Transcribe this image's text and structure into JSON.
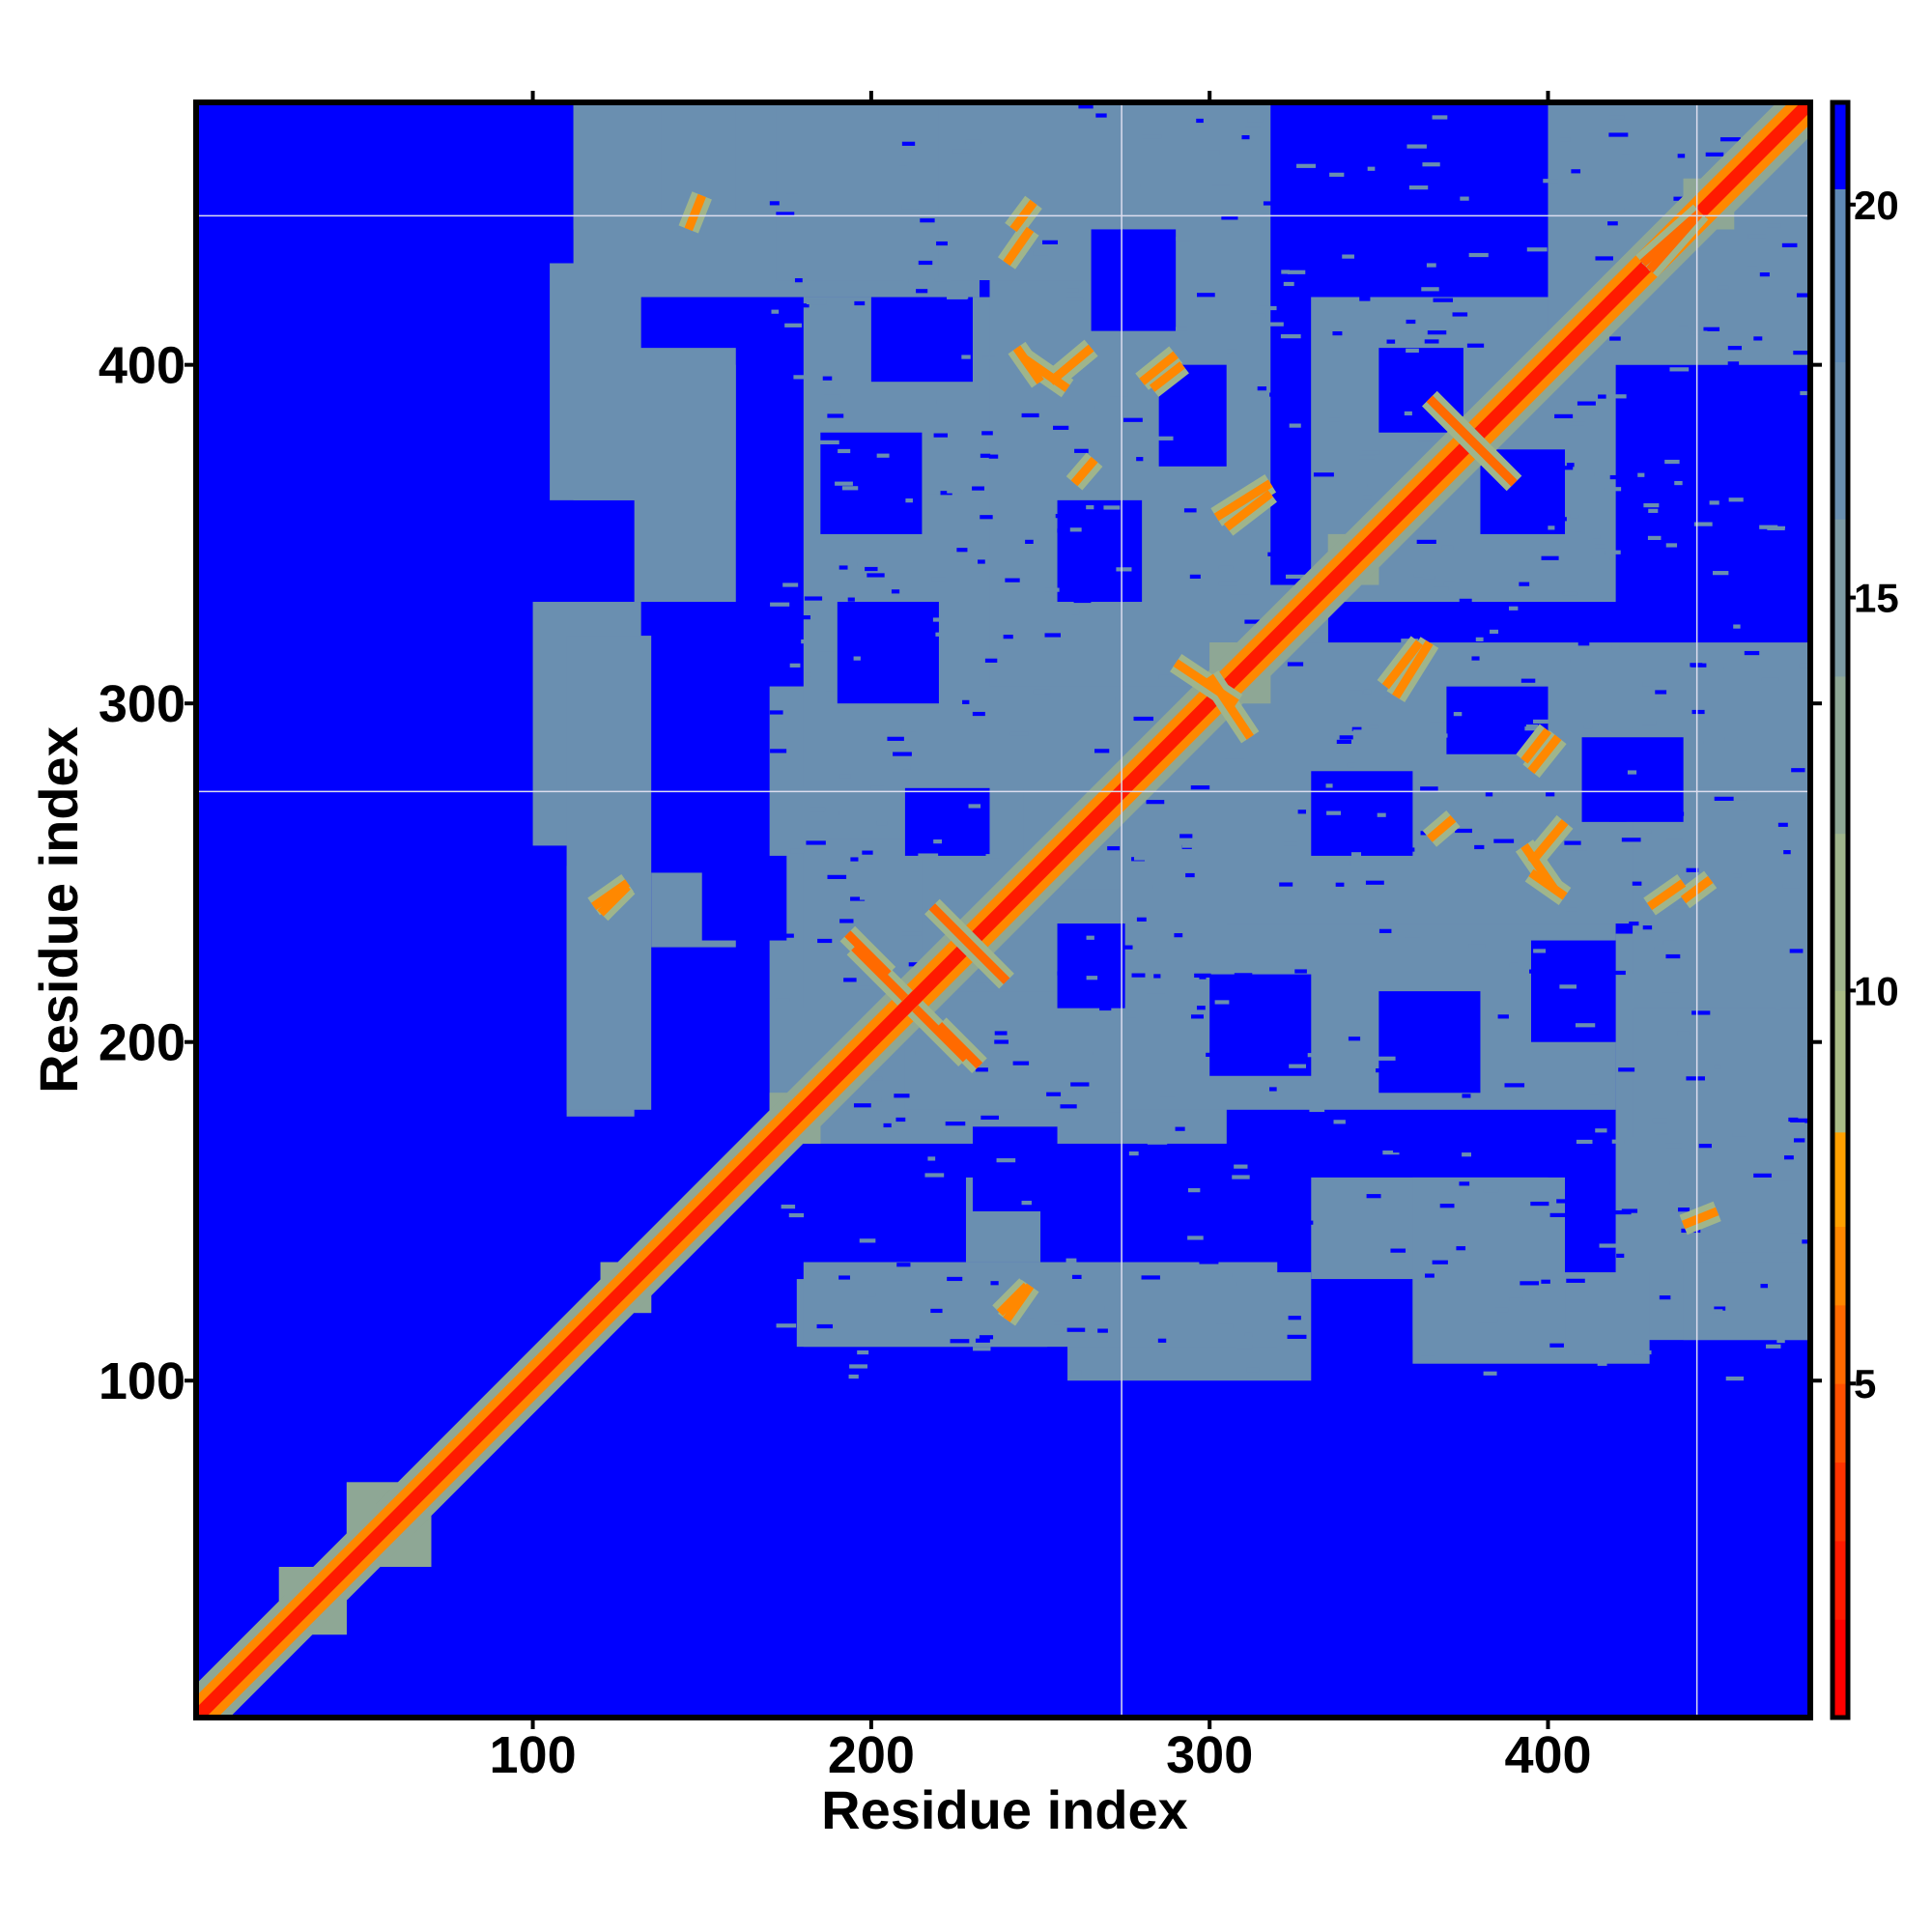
{
  "chart_data": {
    "type": "heatmap",
    "title": "",
    "xlabel": "Residue index",
    "ylabel": "Residue index",
    "xlim": [
      0.5,
      477.5
    ],
    "ylim": [
      0.5,
      477.5
    ],
    "xticks": [
      "100",
      "200",
      "300",
      "400"
    ],
    "yticks": [
      "100",
      "200",
      "300",
      "400"
    ],
    "tick_values": [
      100,
      200,
      300,
      400
    ],
    "colorbar": {
      "range": [
        0.75,
        21.3
      ],
      "ticks": [
        "5",
        "10",
        "15",
        "20"
      ],
      "tick_values": [
        5,
        10,
        15,
        20
      ],
      "stops": [
        {
          "v": 0.75,
          "color": "#ff0000"
        },
        {
          "v": 2,
          "color": "#ff1a00"
        },
        {
          "v": 3,
          "color": "#ff3300"
        },
        {
          "v": 4,
          "color": "#ff5000"
        },
        {
          "v": 5,
          "color": "#ff6a00"
        },
        {
          "v": 6,
          "color": "#ff8800"
        },
        {
          "v": 7,
          "color": "#ffa000"
        },
        {
          "v": 8.2,
          "color": "#a9bc86"
        },
        {
          "v": 10,
          "color": "#9fb58c"
        },
        {
          "v": 12,
          "color": "#8ea795"
        },
        {
          "v": 14,
          "color": "#7c9aa3"
        },
        {
          "v": 16,
          "color": "#6a8fb0"
        },
        {
          "v": 18,
          "color": "#5f89b6"
        },
        {
          "v": 20.2,
          "color": "#0000ff"
        }
      ],
      "background_value": 21
    },
    "masked_residues": [
      274,
      444
    ],
    "diagonal": {
      "core_value": 2,
      "inner_value": 6,
      "halo_value": 12,
      "halo_width": 7
    },
    "regions_symmetric": [
      {
        "x": [
          170,
          305
        ],
        "y": [
          170,
          305
        ],
        "d": 17
      },
      {
        "x": [
          245,
          335
        ],
        "y": [
          245,
          335
        ],
        "d": 17
      },
      {
        "x": [
          330,
          420
        ],
        "y": [
          330,
          420
        ],
        "d": 17
      },
      {
        "x": [
          400,
          477
        ],
        "y": [
          400,
          477
        ],
        "d": 17
      },
      {
        "x": [
          275,
          420
        ],
        "y": [
          180,
          300
        ],
        "d": 17
      },
      {
        "x": [
          305,
          477
        ],
        "y": [
          235,
          318
        ],
        "d": 17
      },
      {
        "x": [
          420,
          477
        ],
        "y": [
          112,
          232
        ],
        "d": 17
      },
      {
        "x": [
          178,
          252
        ],
        "y": [
          110,
          130
        ],
        "d": 17
      },
      {
        "x": [
          258,
          330
        ],
        "y": [
          100,
          132
        ],
        "d": 17
      },
      {
        "x": [
          360,
          430
        ],
        "y": [
          105,
          132
        ],
        "d": 17
      },
      {
        "x": [
          228,
          250
        ],
        "y": [
          135,
          160
        ],
        "d": 17
      },
      {
        "x": [
          330,
          400
        ],
        "y": [
          130,
          160
        ],
        "d": 16
      },
      {
        "x": [
          210,
          260
        ],
        "y": [
          180,
          215
        ],
        "d": 16
      },
      {
        "x": [
          110,
          135
        ],
        "y": [
          180,
          320
        ],
        "d": 17
      },
      {
        "x": [
          112,
          160
        ],
        "y": [
          360,
          405
        ],
        "d": 17
      },
      {
        "x": [
          112,
          135
        ],
        "y": [
          440,
          477
        ],
        "d": 17
      },
      {
        "x": [
          138,
          160
        ],
        "y": [
          445,
          477
        ],
        "d": 17
      },
      {
        "x": [
          172,
          210
        ],
        "y": [
          425,
          477
        ],
        "d": 17
      },
      {
        "x": [
          220,
          275
        ],
        "y": [
          425,
          477
        ],
        "d": 17
      },
      {
        "x": [
          25,
          45
        ],
        "y": [
          25,
          45
        ],
        "d": 13
      },
      {
        "x": [
          45,
          70
        ],
        "y": [
          45,
          70
        ],
        "d": 13
      },
      {
        "x": [
          120,
          135
        ],
        "y": [
          120,
          135
        ],
        "d": 13
      },
      {
        "x": [
          170,
          185
        ],
        "y": [
          170,
          185
        ],
        "d": 12
      },
      {
        "x": [
          335,
          350
        ],
        "y": [
          335,
          350
        ],
        "d": 12
      },
      {
        "x": [
          300,
          318
        ],
        "y": [
          300,
          318
        ],
        "d": 12
      },
      {
        "x": [
          370,
          385
        ],
        "y": [
          370,
          385
        ],
        "d": 12
      },
      {
        "x": [
          440,
          455
        ],
        "y": [
          440,
          455
        ],
        "d": 12
      }
    ],
    "holes": [
      {
        "x": [
          300,
          330
        ],
        "y": [
          190,
          220
        ]
      },
      {
        "x": [
          350,
          380
        ],
        "y": [
          185,
          215
        ]
      },
      {
        "x": [
          395,
          420
        ],
        "y": [
          200,
          230
        ]
      },
      {
        "x": [
          330,
          360
        ],
        "y": [
          255,
          280
        ]
      },
      {
        "x": [
          410,
          440
        ],
        "y": [
          265,
          290
        ]
      },
      {
        "x": [
          370,
          400
        ],
        "y": [
          285,
          305
        ]
      },
      {
        "x": [
          350,
          375
        ],
        "y": [
          380,
          405
        ]
      },
      {
        "x": [
          255,
          275
        ],
        "y": [
          210,
          235
        ]
      },
      {
        "x": [
          230,
          255
        ],
        "y": [
          150,
          175
        ]
      }
    ],
    "contacts": [
      {
        "from": [
          218,
          240
        ],
        "to": [
          240,
          218
        ],
        "d": 5
      },
      {
        "from": [
          195,
          228
        ],
        "to": [
          210,
          213
        ],
        "d": 5
      },
      {
        "from": [
          220,
          205
        ],
        "to": [
          232,
          193
        ],
        "d": 5
      },
      {
        "from": [
          365,
          390
        ],
        "to": [
          390,
          365
        ],
        "d": 5
      },
      {
        "from": [
          120,
          238
        ],
        "to": [
          128,
          246
        ],
        "d": 6
      },
      {
        "from": [
          242,
          440
        ],
        "to": [
          248,
          448
        ],
        "d": 6
      },
      {
        "from": [
          245,
          402
        ],
        "to": [
          258,
          393
        ],
        "d": 6
      },
      {
        "from": [
          283,
          393
        ],
        "to": [
          292,
          400
        ],
        "d": 6
      },
      {
        "from": [
          305,
          352
        ],
        "to": [
          318,
          362
        ],
        "d": 6
      },
      {
        "from": [
          300,
          308
        ],
        "to": [
          312,
          290
        ],
        "d": 6
      },
      {
        "from": [
          355,
          302
        ],
        "to": [
          365,
          318
        ],
        "d": 6
      },
      {
        "from": [
          395,
          280
        ],
        "to": [
          403,
          290
        ],
        "d": 6
      },
      {
        "from": [
          395,
          253
        ],
        "to": [
          405,
          265
        ],
        "d": 6
      },
      {
        "from": [
          395,
          250
        ],
        "to": [
          405,
          243
        ],
        "d": 6
      },
      {
        "from": [
          430,
          240
        ],
        "to": [
          440,
          247
        ],
        "d": 6
      },
      {
        "from": [
          240,
          118
        ],
        "to": [
          247,
          128
        ],
        "d": 6
      },
      {
        "from": [
          440,
          146
        ],
        "to": [
          450,
          150
        ],
        "d": 6
      },
      {
        "from": [
          428,
          430
        ],
        "to": [
          445,
          445
        ],
        "d": 5
      },
      {
        "from": [
          260,
          365
        ],
        "to": [
          266,
          372
        ],
        "d": 6
      }
    ]
  }
}
